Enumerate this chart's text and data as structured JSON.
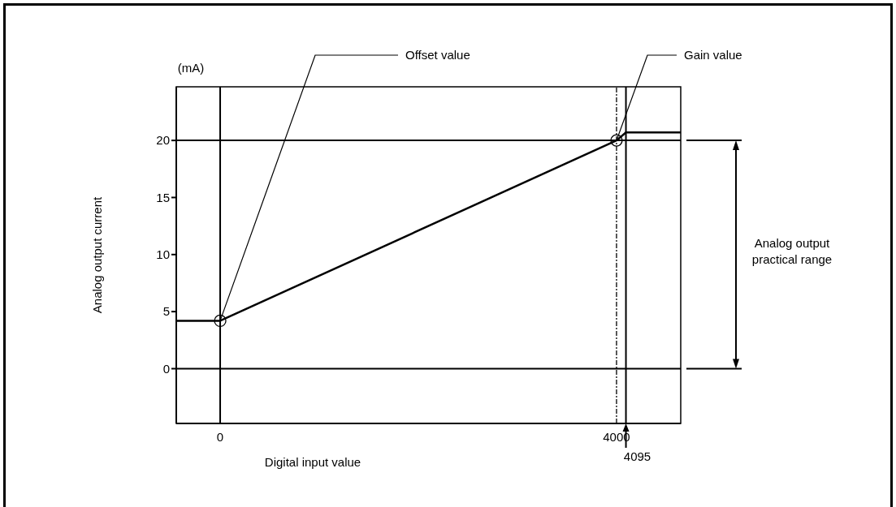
{
  "chart_data": {
    "type": "line",
    "xlabel": "Digital input value",
    "ylabel": "Analog output current",
    "xlim": [
      -443,
      4648
    ],
    "ylim": [
      -4.8,
      24.7
    ],
    "xticks": [
      0,
      4000
    ],
    "yticks": [
      0,
      5,
      10,
      15,
      20
    ],
    "series": [
      {
        "type": "line",
        "color": "#000000",
        "x": [
          -443,
          0,
          4000,
          4095,
          4648
        ],
        "values": [
          4.2,
          4.2,
          20,
          20.7,
          20.7
        ],
        "marker": "none"
      },
      {
        "type": "scatter",
        "color": "#000000",
        "x": [
          0,
          4000
        ],
        "values": [
          4.2,
          20
        ],
        "marker": "circle"
      }
    ],
    "ref_lines": [
      {
        "axis": "y",
        "value": 0,
        "color": "#000000",
        "line_style": "solid"
      },
      {
        "axis": "y",
        "value": 20,
        "color": "#000000",
        "line_style": "solid"
      },
      {
        "axis": "x",
        "value": 0,
        "color": "#000000",
        "line_style": "solid"
      },
      {
        "axis": "x",
        "value": 4095,
        "color": "#000000",
        "line_style": "solid",
        "label": "4095"
      },
      {
        "axis": "x",
        "value": 4000,
        "color": "#000000",
        "line_style": "dashed"
      }
    ],
    "annotations": [
      {
        "text": "Offset value",
        "x": 0,
        "y": 4.2
      },
      {
        "text": "Gain value",
        "x": 4000,
        "y": 20
      },
      "(mA)",
      "Analog output practical range"
    ]
  }
}
